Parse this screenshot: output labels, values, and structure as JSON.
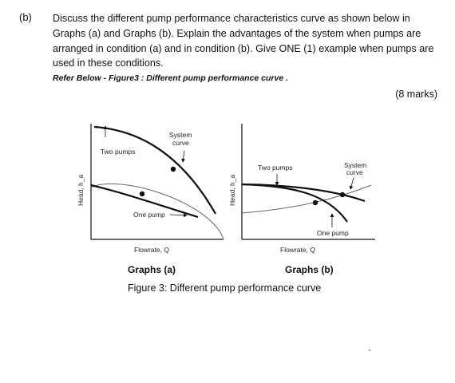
{
  "question": {
    "label": "(b)",
    "text": "Discuss the different pump performance characteristics curve as shown below in Graphs (a) and Graphs (b). Explain the advantages of the system when pumps are arranged in condition (a) and in condition (b). Give ONE (1) example when pumps are used in these conditions.",
    "reference": "Refer Below - Figure3 : Different pump performance curve .",
    "marks": "(8 marks)"
  },
  "figure": {
    "caption": "Figure 3: Different pump performance curve",
    "graph_a": {
      "caption": "Graphs (a)",
      "ylabel": "Head, h_a",
      "xlabel": "Flowrate, Q",
      "labels": {
        "two_pumps": "Two pumps",
        "one_pump": "One pump",
        "system_line1": "System",
        "system_line2": "curve"
      }
    },
    "graph_b": {
      "caption": "Graphs (b)",
      "ylabel": "Head, h_a",
      "xlabel": "Flowrate, Q",
      "labels": {
        "two_pumps": "Two pumps",
        "one_pump": "One pump",
        "system_line1": "System",
        "system_line2": "curve"
      }
    }
  },
  "colors": {
    "ink": "#1a1a1a",
    "curve": "#111111",
    "system_curve": "#666666"
  }
}
